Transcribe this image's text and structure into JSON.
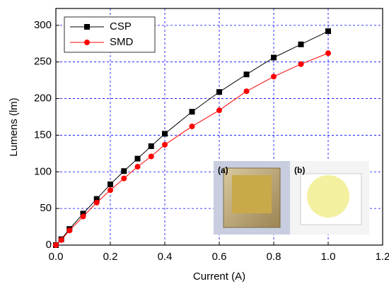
{
  "chart_data": {
    "type": "line",
    "xlabel": "Current (A)",
    "ylabel": "Lumens (lm)",
    "x": [
      0,
      0.02,
      0.05,
      0.1,
      0.15,
      0.2,
      0.25,
      0.3,
      0.35,
      0.4,
      0.5,
      0.6,
      0.7,
      0.8,
      0.9,
      1.0
    ],
    "series": [
      {
        "name": "CSP",
        "color": "#000000",
        "marker": "square",
        "values": [
          0,
          8,
          22,
          43,
          63,
          83,
          101,
          118,
          135,
          152,
          182,
          209,
          233,
          256,
          274,
          292
        ]
      },
      {
        "name": "SMD",
        "color": "#ff0000",
        "marker": "circle",
        "values": [
          0,
          7,
          20,
          39,
          58,
          75,
          91,
          107,
          121,
          137,
          162,
          184,
          210,
          230,
          247,
          262
        ]
      }
    ],
    "xlim": [
      0,
      1.2
    ],
    "xticks": [
      {
        "value": 0,
        "label": "0.0"
      },
      0.2,
      0.4,
      0.6,
      0.8,
      {
        "value": 1,
        "label": "1.0"
      },
      1.2
    ],
    "ylim": [
      0,
      323
    ],
    "yticks": [
      0,
      50,
      100,
      150,
      200,
      250,
      300
    ],
    "grid": true,
    "grid_color": "#0000ff",
    "legend": "upper left",
    "annotations": [
      "(a)",
      "(b)"
    ]
  }
}
